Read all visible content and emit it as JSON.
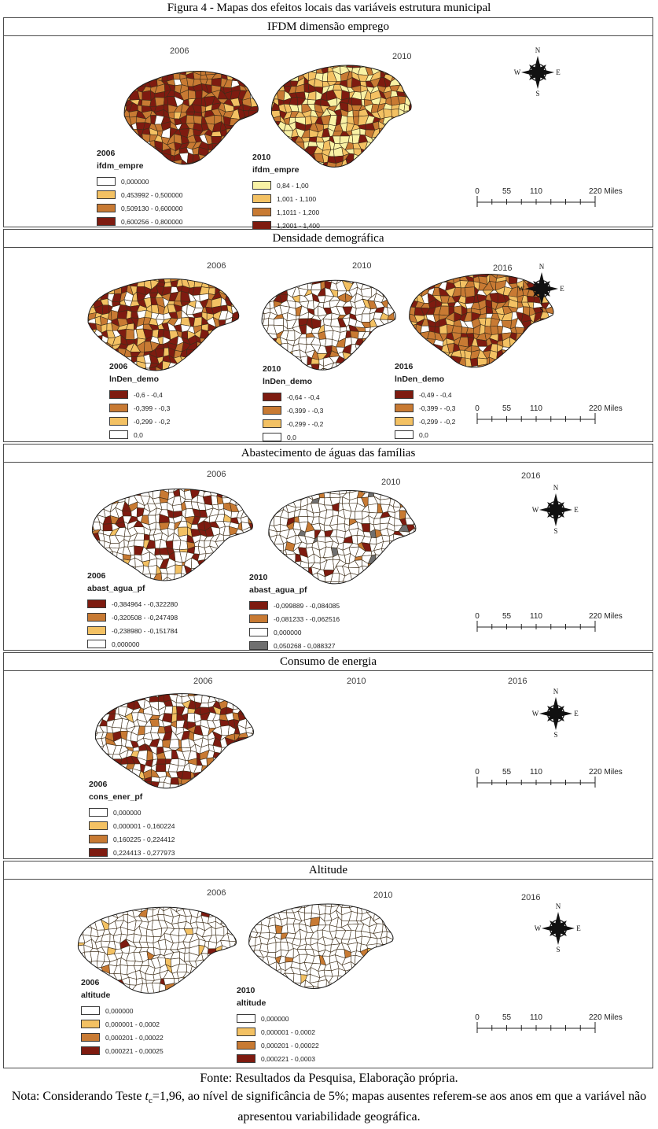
{
  "figure": {
    "title": "Figura 4 - Mapas dos efeitos locais das variáveis estrutura municipal",
    "source": "Fonte: Resultados da Pesquisa, Elaboração própria.",
    "note_1": "Nota: Considerando Teste ",
    "note_t": "t",
    "note_sub": "c",
    "note_2": "=1,96, ao nível de significância de 5%; mapas ausentes referem-se aos anos em que a variável não apresentou variabilidade geográfica."
  },
  "compass": {
    "n": "N",
    "s": "S",
    "e": "E",
    "w": "W"
  },
  "scalebar": {
    "labels": [
      "0",
      "55",
      "110",
      "220 Miles"
    ],
    "positions": [
      0,
      0.25,
      0.5,
      1
    ]
  },
  "colors": {
    "dark_red": "#7e1b10",
    "orange": "#c87a33",
    "light_orange": "#f3c163",
    "pale_yellow": "#f9f2a5",
    "white": "#ffffff",
    "gray": "#6f6f6f"
  },
  "panels": [
    {
      "title": "IFDM dimensão emprego",
      "years": [
        "2006",
        "2010"
      ],
      "maps": [
        {
          "seed": 11,
          "mix": [
            [
              "#7e1b10",
              52
            ],
            [
              "#c87a33",
              36
            ],
            [
              "#f3c163",
              9
            ],
            [
              "#ffffff",
              3
            ]
          ]
        },
        {
          "seed": 22,
          "mix": [
            [
              "#f9f2a5",
              28
            ],
            [
              "#f3c163",
              27
            ],
            [
              "#c87a33",
              25
            ],
            [
              "#7e1b10",
              20
            ]
          ]
        }
      ],
      "legends": [
        {
          "year": "2006",
          "field": "ifdm_empre",
          "items": [
            {
              "c": "#ffffff",
              "label": "0,000000"
            },
            {
              "c": "#f3c163",
              "label": "0,453992 - 0,500000"
            },
            {
              "c": "#c87a33",
              "label": "0,509130 - 0,600000"
            },
            {
              "c": "#7e1b10",
              "label": "0,600256 - 0,800000"
            }
          ]
        },
        {
          "year": "2010",
          "field": "ifdm_empre",
          "items": [
            {
              "c": "#f9f2a5",
              "label": "0,84 - 1,00"
            },
            {
              "c": "#f3c163",
              "label": "1,001 - 1,100"
            },
            {
              "c": "#c87a33",
              "label": "1,1011 - 1,200"
            },
            {
              "c": "#7e1b10",
              "label": "1,2001 - 1,400"
            }
          ]
        }
      ]
    },
    {
      "title": "Densidade demográfica",
      "years": [
        "2006",
        "2010",
        "2016"
      ],
      "maps": [
        {
          "seed": 33,
          "mix": [
            [
              "#7e1b10",
              38
            ],
            [
              "#f3c163",
              28
            ],
            [
              "#c87a33",
              16
            ],
            [
              "#ffffff",
              18
            ]
          ]
        },
        {
          "seed": 44,
          "mix": [
            [
              "#ffffff",
              76
            ],
            [
              "#7e1b10",
              13
            ],
            [
              "#c87a33",
              6
            ],
            [
              "#f3c163",
              5
            ]
          ]
        },
        {
          "seed": 55,
          "mix": [
            [
              "#c87a33",
              44
            ],
            [
              "#7e1b10",
              26
            ],
            [
              "#f3c163",
              19
            ],
            [
              "#ffffff",
              11
            ]
          ]
        }
      ],
      "legends": [
        {
          "year": "2006",
          "field": "lnDen_demo",
          "items": [
            {
              "c": "#7e1b10",
              "label": "-0,6 - -0,4"
            },
            {
              "c": "#c87a33",
              "label": "-0,399 - -0,3"
            },
            {
              "c": "#f3c163",
              "label": "-0,299 - -0,2"
            },
            {
              "c": "#ffffff",
              "label": "0,0"
            }
          ]
        },
        {
          "year": "2010",
          "field": "lnDen_demo",
          "items": [
            {
              "c": "#7e1b10",
              "label": "-0,64 - -0,4"
            },
            {
              "c": "#c87a33",
              "label": "-0,399 - -0,3"
            },
            {
              "c": "#f3c163",
              "label": "-0,299 - -0,2"
            },
            {
              "c": "#ffffff",
              "label": "0,0"
            }
          ]
        },
        {
          "year": "2016",
          "field": "lnDen_demo",
          "items": [
            {
              "c": "#7e1b10",
              "label": "-0,49 - -0,4"
            },
            {
              "c": "#c87a33",
              "label": "-0,399 - -0,3"
            },
            {
              "c": "#f3c163",
              "label": "-0,299 - -0,2"
            },
            {
              "c": "#ffffff",
              "label": "0,0"
            }
          ]
        }
      ]
    },
    {
      "title": "Abastecimento de águas das famílias",
      "years": [
        "2006",
        "2010",
        "2016"
      ],
      "maps": [
        {
          "seed": 66,
          "mix": [
            [
              "#ffffff",
              70
            ],
            [
              "#7e1b10",
              16
            ],
            [
              "#c87a33",
              9
            ],
            [
              "#f3c163",
              5
            ]
          ]
        },
        {
          "seed": 77,
          "mix": [
            [
              "#ffffff",
              80
            ],
            [
              "#7e1b10",
              9
            ],
            [
              "#c87a33",
              6
            ],
            [
              "#6f6f6f",
              5
            ]
          ]
        }
      ],
      "legends": [
        {
          "year": "2006",
          "field": "abast_agua_pf",
          "items": [
            {
              "c": "#7e1b10",
              "label": "-0,384964 - -0,322280"
            },
            {
              "c": "#c87a33",
              "label": "-0,320508 - -0,247498"
            },
            {
              "c": "#f3c163",
              "label": "-0,238980 - -0,151784"
            },
            {
              "c": "#ffffff",
              "label": "0,000000"
            }
          ]
        },
        {
          "year": "2010",
          "field": "abast_agua_pf",
          "items": [
            {
              "c": "#7e1b10",
              "label": "-0,099889 - -0,084085"
            },
            {
              "c": "#c87a33",
              "label": "-0,081233 - -0,062516"
            },
            {
              "c": "#ffffff",
              "label": "0,000000"
            },
            {
              "c": "#6f6f6f",
              "label": "0,050268 - 0,088327"
            }
          ]
        }
      ]
    },
    {
      "title": "Consumo de energia",
      "years": [
        "2006",
        "2010",
        "2016"
      ],
      "maps": [
        {
          "seed": 88,
          "mix": [
            [
              "#ffffff",
              60
            ],
            [
              "#7e1b10",
              24
            ],
            [
              "#c87a33",
              13
            ],
            [
              "#f3c163",
              3
            ]
          ]
        }
      ],
      "legends": [
        {
          "year": "2006",
          "field": "cons_ener_pf",
          "items": [
            {
              "c": "#ffffff",
              "label": "0,000000"
            },
            {
              "c": "#f3c163",
              "label": "0,000001 - 0,160224"
            },
            {
              "c": "#c87a33",
              "label": "0,160225 - 0,224412"
            },
            {
              "c": "#7e1b10",
              "label": "0,224413 - 0,277973"
            }
          ]
        }
      ]
    },
    {
      "title": "Altitude",
      "years": [
        "2006",
        "2010",
        "2016"
      ],
      "maps": [
        {
          "seed": 99,
          "mix": [
            [
              "#ffffff",
              92
            ],
            [
              "#7e1b10",
              4
            ],
            [
              "#c87a33",
              2
            ],
            [
              "#f3c163",
              2
            ]
          ]
        },
        {
          "seed": 111,
          "mix": [
            [
              "#ffffff",
              96
            ],
            [
              "#f3c163",
              2
            ],
            [
              "#c87a33",
              2
            ]
          ]
        }
      ],
      "legends": [
        {
          "year": "2006",
          "field": "altitude",
          "items": [
            {
              "c": "#ffffff",
              "label": "0,000000"
            },
            {
              "c": "#f3c163",
              "label": "0,000001 - 0,0002"
            },
            {
              "c": "#c87a33",
              "label": "0,000201 - 0,00022"
            },
            {
              "c": "#7e1b10",
              "label": "0,000221 - 0,00025"
            }
          ]
        },
        {
          "year": "2010",
          "field": "altitude",
          "items": [
            {
              "c": "#ffffff",
              "label": "0,000000"
            },
            {
              "c": "#f3c163",
              "label": "0,000001 - 0,0002"
            },
            {
              "c": "#c87a33",
              "label": "0,000201 - 0,00022"
            },
            {
              "c": "#7e1b10",
              "label": "0,000221 - 0,0003"
            }
          ]
        }
      ]
    }
  ]
}
